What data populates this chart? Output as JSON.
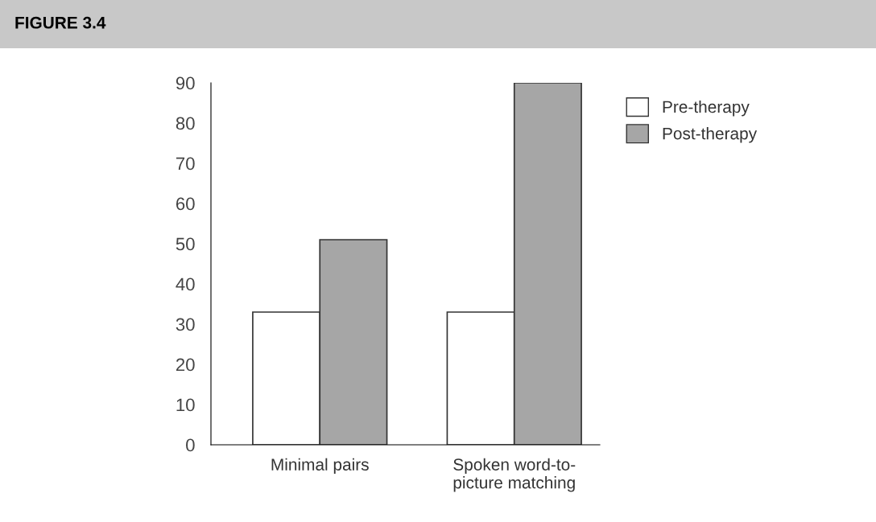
{
  "chart_data": {
    "type": "bar",
    "title": "FIGURE 3.4",
    "categories": [
      "Minimal pairs",
      "Spoken word-to-\npicture matching"
    ],
    "series": [
      {
        "name": "Pre-therapy",
        "color": "#ffffff",
        "values": [
          33,
          33
        ]
      },
      {
        "name": "Post-therapy",
        "color": "#a6a6a6",
        "values": [
          51,
          90
        ]
      }
    ],
    "ylim": [
      0,
      90
    ],
    "yticks": [
      0,
      10,
      20,
      30,
      40,
      50,
      60,
      70,
      80,
      90
    ],
    "grid": false,
    "legend": "top right"
  }
}
